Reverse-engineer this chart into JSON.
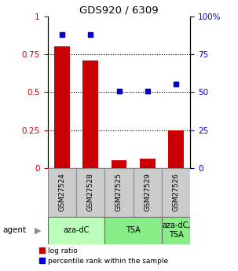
{
  "title": "GDS920 / 6309",
  "samples": [
    "GSM27524",
    "GSM27528",
    "GSM27525",
    "GSM27529",
    "GSM27526"
  ],
  "log_ratio": [
    0.8,
    0.71,
    0.05,
    0.06,
    0.25
  ],
  "percentile_rank": [
    0.88,
    0.88,
    0.505,
    0.505,
    0.555
  ],
  "bar_color": "#cc0000",
  "dot_color": "#0000cc",
  "groups": [
    {
      "label": "aza-dC",
      "span": [
        0,
        2
      ],
      "color": "#bbffbb"
    },
    {
      "label": "TSA",
      "span": [
        2,
        4
      ],
      "color": "#88ee88"
    },
    {
      "label": "aza-dC,\nTSA",
      "span": [
        4,
        5
      ],
      "color": "#88ee88"
    }
  ],
  "agent_label": "agent",
  "yticks_left": [
    0,
    0.25,
    0.5,
    0.75,
    1.0
  ],
  "ytick_labels_left": [
    "0",
    "0.25",
    "0.5",
    "0.75",
    "1"
  ],
  "yticks_right": [
    0,
    25,
    50,
    75,
    100
  ],
  "ytick_labels_right": [
    "0",
    "25",
    "50",
    "75",
    "100%"
  ],
  "ylim": [
    0,
    1.0
  ],
  "legend_log_ratio": "log ratio",
  "legend_percentile": "percentile rank within the sample",
  "background_color": "#ffffff",
  "sample_box_color": "#cccccc"
}
